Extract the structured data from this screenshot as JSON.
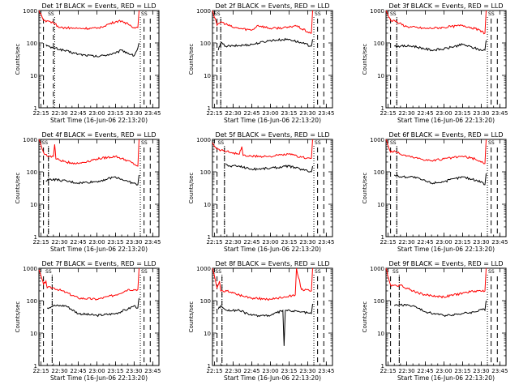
{
  "colors": {
    "events": "#000000",
    "lld": "#ff0000",
    "axes": "#000000",
    "background": "#ffffff"
  },
  "common": {
    "xlabel": "Start Time (16-Jun-06 22:13:20)",
    "ylabel": "Counts/sec",
    "y_ticks": [
      {
        "v": 1,
        "label": "1"
      },
      {
        "v": 10,
        "label": "10"
      },
      {
        "v": 100,
        "label": "100"
      },
      {
        "v": 1000,
        "label": "1000"
      }
    ],
    "x_ticks": [
      "22:15",
      "22:30",
      "22:45",
      "23:00",
      "23:15",
      "23:30",
      "23:45"
    ],
    "marker_label": "SS"
  },
  "chart_data": [
    {
      "type": "line",
      "title": "Det 1f BLACK = Events, RED = LLD",
      "xlim": [
        "22:13:20",
        "23:50:00"
      ],
      "ylim": [
        1,
        1000
      ],
      "yscale": "log",
      "dashed_lines": [
        "22:17",
        "22:25",
        "23:38",
        "23:43"
      ],
      "dotted_lines": [
        "22:26",
        "23:35"
      ],
      "series": [
        {
          "name": "Events",
          "color": "#000000",
          "x": [
            "22:19",
            "22:21",
            "22:23",
            "22:26",
            "22:45",
            "23:00",
            "23:15",
            "23:20",
            "23:30",
            "23:33",
            "23:34"
          ],
          "values": [
            90,
            80,
            70,
            70,
            45,
            38,
            48,
            60,
            40,
            70,
            100
          ]
        },
        {
          "name": "LLD",
          "color": "#ff0000",
          "x": [
            "22:13:20",
            "22:17",
            "22:19",
            "22:24",
            "22:30",
            "22:45",
            "23:00",
            "23:15",
            "23:20",
            "23:30",
            "23:33",
            "23:34"
          ],
          "values": [
            1000,
            500,
            450,
            450,
            300,
            280,
            280,
            450,
            480,
            300,
            300,
            1000
          ]
        }
      ]
    },
    {
      "type": "line",
      "title": "Det 2f BLACK = Events, RED = LLD",
      "xlim": [
        "22:13:20",
        "23:50:00"
      ],
      "ylim": [
        1,
        1000
      ],
      "yscale": "log",
      "dashed_lines": [
        "22:17",
        "22:20",
        "23:38",
        "23:43"
      ],
      "dotted_lines": [
        "22:20",
        "23:35"
      ],
      "series": [
        {
          "name": "Events",
          "color": "#000000",
          "x": [
            "22:18",
            "22:20",
            "22:24",
            "22:30",
            "22:45",
            "23:00",
            "23:15",
            "23:25",
            "23:33",
            "23:34"
          ],
          "values": [
            60,
            100,
            80,
            80,
            90,
            120,
            130,
            100,
            80,
            130
          ]
        },
        {
          "name": "LLD",
          "color": "#ff0000",
          "x": [
            "22:13:20",
            "22:17",
            "22:20",
            "22:30",
            "22:45",
            "22:50",
            "23:00",
            "23:15",
            "23:20",
            "23:30",
            "23:33",
            "23:34"
          ],
          "values": [
            1000,
            350,
            450,
            300,
            250,
            350,
            280,
            300,
            350,
            220,
            200,
            1000
          ]
        }
      ]
    },
    {
      "type": "line",
      "title": "Det 3f BLACK = Events, RED = LLD",
      "xlim": [
        "22:13:20",
        "23:50:00"
      ],
      "ylim": [
        1,
        1000
      ],
      "yscale": "log",
      "dashed_lines": [
        "22:17",
        "22:22",
        "23:38",
        "23:43"
      ],
      "dotted_lines": [
        "22:22",
        "23:35"
      ],
      "series": [
        {
          "name": "Events",
          "color": "#000000",
          "x": [
            "22:20",
            "22:25",
            "22:35",
            "22:50",
            "23:00",
            "23:15",
            "23:30",
            "23:33",
            "23:34"
          ],
          "values": [
            80,
            80,
            80,
            60,
            65,
            90,
            60,
            60,
            120
          ]
        },
        {
          "name": "LLD",
          "color": "#ff0000",
          "x": [
            "22:13:20",
            "22:17",
            "22:20",
            "22:24",
            "22:30",
            "22:45",
            "23:00",
            "23:15",
            "23:25",
            "23:33",
            "23:34"
          ],
          "values": [
            1000,
            500,
            500,
            400,
            320,
            280,
            300,
            350,
            280,
            200,
            1000
          ]
        }
      ]
    },
    {
      "type": "line",
      "title": "Det 4f BLACK = Events, RED = LLD",
      "xlim": [
        "22:13:20",
        "23:50:00"
      ],
      "ylim": [
        1,
        1000
      ],
      "yscale": "log",
      "dashed_lines": [
        "22:17",
        "22:21",
        "23:38",
        "23:43"
      ],
      "dotted_lines": [
        "22:21",
        "23:35"
      ],
      "series": [
        {
          "name": "Events",
          "color": "#000000",
          "x": [
            "22:19",
            "22:22",
            "22:30",
            "22:45",
            "23:00",
            "23:15",
            "23:25",
            "23:33",
            "23:34"
          ],
          "values": [
            50,
            60,
            55,
            45,
            50,
            70,
            50,
            40,
            80
          ]
        },
        {
          "name": "LLD",
          "color": "#ff0000",
          "x": [
            "22:13:20",
            "22:17",
            "22:20",
            "22:25",
            "22:26",
            "22:27",
            "22:35",
            "22:45",
            "23:00",
            "23:15",
            "23:25",
            "23:33",
            "23:34"
          ],
          "values": [
            1000,
            400,
            300,
            300,
            700,
            250,
            200,
            180,
            250,
            300,
            220,
            150,
            1000
          ]
        }
      ]
    },
    {
      "type": "line",
      "title": "Det 5f BLACK = Events, RED = LLD",
      "xlim": [
        "22:13:20",
        "23:50:00"
      ],
      "ylim": [
        1,
        1000
      ],
      "yscale": "log",
      "dashed_lines": [
        "22:17",
        "22:23",
        "23:38",
        "23:43"
      ],
      "dotted_lines": [
        "22:23",
        "23:35"
      ],
      "series": [
        {
          "name": "Events",
          "color": "#000000",
          "x": [
            "22:24",
            "22:26",
            "22:35",
            "22:45",
            "23:00",
            "23:15",
            "23:25",
            "23:33",
            "23:34"
          ],
          "values": [
            180,
            150,
            150,
            120,
            130,
            150,
            120,
            100,
            150
          ]
        },
        {
          "name": "LLD",
          "color": "#ff0000",
          "x": [
            "22:13:20",
            "22:17",
            "22:22",
            "22:35",
            "22:37",
            "22:38",
            "22:45",
            "23:00",
            "23:15",
            "23:25",
            "23:33",
            "23:34"
          ],
          "values": [
            800,
            500,
            450,
            350,
            600,
            320,
            300,
            300,
            350,
            280,
            260,
            1000
          ]
        }
      ]
    },
    {
      "type": "line",
      "title": "Det 6f BLACK = Events, RED = LLD",
      "xlim": [
        "22:13:20",
        "23:50:00"
      ],
      "ylim": [
        1,
        1000
      ],
      "yscale": "log",
      "dashed_lines": [
        "22:17",
        "22:22",
        "23:38",
        "23:43"
      ],
      "dotted_lines": [
        "22:22",
        "23:35"
      ],
      "series": [
        {
          "name": "Events",
          "color": "#000000",
          "x": [
            "22:20",
            "22:25",
            "22:35",
            "22:50",
            "23:00",
            "23:15",
            "23:30",
            "23:33",
            "23:34"
          ],
          "values": [
            80,
            70,
            70,
            45,
            50,
            70,
            50,
            40,
            90
          ]
        },
        {
          "name": "LLD",
          "color": "#ff0000",
          "x": [
            "22:13:20",
            "22:17",
            "22:20",
            "22:25",
            "22:35",
            "22:50",
            "23:00",
            "23:15",
            "23:25",
            "23:33",
            "23:34"
          ],
          "values": [
            1000,
            400,
            450,
            350,
            280,
            220,
            250,
            300,
            250,
            180,
            1000
          ]
        }
      ]
    },
    {
      "type": "line",
      "title": "Det 7f BLACK = Events, RED = LLD",
      "xlim": [
        "22:13:20",
        "23:50:00"
      ],
      "ylim": [
        1,
        1000
      ],
      "yscale": "log",
      "dashed_lines": [
        "22:17",
        "22:24",
        "23:38",
        "23:43"
      ],
      "dotted_lines": [
        "22:24",
        "23:35"
      ],
      "series": [
        {
          "name": "Events",
          "color": "#000000",
          "x": [
            "22:20",
            "22:25",
            "22:35",
            "22:45",
            "23:00",
            "23:15",
            "23:25",
            "23:30",
            "23:33",
            "23:34"
          ],
          "values": [
            60,
            70,
            70,
            40,
            35,
            40,
            55,
            70,
            60,
            120
          ]
        },
        {
          "name": "LLD",
          "color": "#ff0000",
          "x": [
            "22:13:20",
            "22:17",
            "22:19",
            "22:20",
            "22:25",
            "22:35",
            "22:45",
            "23:00",
            "23:15",
            "23:25",
            "23:33",
            "23:34"
          ],
          "values": [
            900,
            320,
            400,
            250,
            250,
            180,
            120,
            110,
            150,
            220,
            220,
            1000
          ]
        }
      ]
    },
    {
      "type": "line",
      "title": "Det 8f BLACK = Events, RED = LLD",
      "xlim": [
        "22:13:20",
        "23:50:00"
      ],
      "ylim": [
        1,
        1000
      ],
      "yscale": "log",
      "dashed_lines": [
        "22:17",
        "22:21",
        "23:38",
        "23:43"
      ],
      "dotted_lines": [
        "22:21",
        "23:35"
      ],
      "series": [
        {
          "name": "Events",
          "color": "#000000",
          "x": [
            "22:18",
            "22:20",
            "22:25",
            "22:35",
            "22:45",
            "23:00",
            "23:10",
            "23:11",
            "23:12",
            "23:25",
            "23:33",
            "23:34"
          ],
          "values": [
            55,
            70,
            50,
            50,
            35,
            35,
            50,
            4,
            50,
            45,
            40,
            80
          ]
        },
        {
          "name": "LLD",
          "color": "#ff0000",
          "x": [
            "22:13:20",
            "22:17",
            "22:19",
            "22:20",
            "22:25",
            "22:35",
            "22:45",
            "23:00",
            "23:15",
            "23:20",
            "23:21",
            "23:25",
            "23:33",
            "23:34"
          ],
          "values": [
            1000,
            250,
            400,
            200,
            200,
            150,
            120,
            110,
            140,
            150,
            1000,
            220,
            200,
            1000
          ]
        }
      ]
    },
    {
      "type": "line",
      "title": "Det 9f BLACK = Events, RED = LLD",
      "xlim": [
        "22:13:20",
        "23:50:00"
      ],
      "ylim": [
        1,
        1000
      ],
      "yscale": "log",
      "dashed_lines": [
        "22:17",
        "22:24",
        "23:38",
        "23:43"
      ],
      "dotted_lines": [
        "22:24",
        "23:35"
      ],
      "series": [
        {
          "name": "Events",
          "color": "#000000",
          "x": [
            "22:20",
            "22:25",
            "22:35",
            "22:45",
            "23:00",
            "23:15",
            "23:25",
            "23:30",
            "23:33",
            "23:34"
          ],
          "values": [
            70,
            75,
            70,
            45,
            35,
            40,
            45,
            55,
            50,
            100
          ]
        },
        {
          "name": "LLD",
          "color": "#ff0000",
          "x": [
            "22:13:20",
            "22:17",
            "22:20",
            "22:25",
            "22:35",
            "22:45",
            "23:00",
            "23:15",
            "23:25",
            "23:33",
            "23:34"
          ],
          "values": [
            1000,
            300,
            300,
            300,
            200,
            150,
            130,
            170,
            200,
            200,
            1000
          ]
        }
      ]
    }
  ]
}
